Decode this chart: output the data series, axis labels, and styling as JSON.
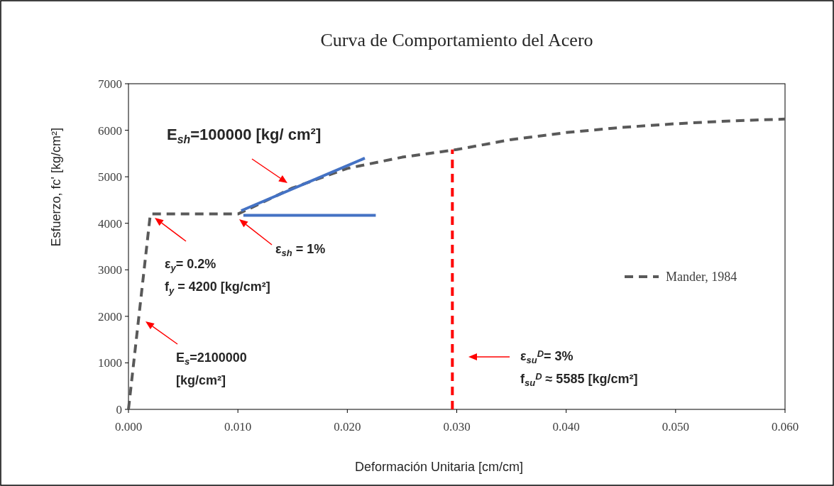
{
  "chart_data": {
    "type": "line",
    "title": "Curva de Comportamiento  del Acero",
    "xlabel": "Deformación Unitaria [cm/cm]",
    "ylabel": "Esfuerzo, fc' [kg/cm²]",
    "xlim": [
      0,
      0.06
    ],
    "xticks": [
      {
        "value": 0,
        "label": "0.000"
      },
      {
        "value": 0.01,
        "label": "0.010"
      },
      {
        "value": 0.02,
        "label": "0.020"
      },
      {
        "value": 0.03,
        "label": "0.030"
      },
      {
        "value": 0.04,
        "label": "0.040"
      },
      {
        "value": 0.05,
        "label": "0.050"
      },
      {
        "value": 0.06,
        "label": "0.060"
      }
    ],
    "ylim": [
      0,
      7000
    ],
    "yticks": [
      0,
      1000,
      2000,
      3000,
      4000,
      5000,
      6000,
      7000
    ],
    "grid": false,
    "legend": "right",
    "marker": "none",
    "series": [
      {
        "name": "Mander, 1984",
        "color": "#595959",
        "line_style": "dashed",
        "x": [
          0,
          0.002,
          0.01,
          0.012,
          0.015,
          0.02,
          0.025,
          0.03,
          0.035,
          0.04,
          0.045,
          0.05,
          0.055,
          0.06
        ],
        "values": [
          0,
          4200,
          4200,
          4420,
          4760,
          5180,
          5420,
          5585,
          5800,
          5950,
          6060,
          6140,
          6200,
          6240
        ]
      },
      {
        "color": "#4472c4",
        "line_style": "solid",
        "x": [
          0.0103,
          0.0216
        ],
        "values": [
          4270,
          5400
        ]
      },
      {
        "color": "#4472c4",
        "line_style": "solid",
        "x": [
          0.0105,
          0.0226
        ],
        "values": [
          4170,
          4170
        ]
      },
      {
        "color": "#ff0000",
        "line_style": "dashed",
        "x": [
          0.0296,
          0.0296
        ],
        "values": [
          0,
          5585
        ]
      }
    ],
    "annotations": [
      "E$_{sh}$=100000 [kg/ cm²]",
      "ε$_{y}$= 0.2%\nf$_{y}$ = 4200 [kg/cm²]",
      "ε$_{sh}$ = 1%",
      "E$_{s}$=2100000\n[kg/cm²]",
      "ε$_{su}$$^{D}$= 3%\nf$_{su}$$^{D}$ ≈ 5585 [kg/cm²]"
    ]
  }
}
